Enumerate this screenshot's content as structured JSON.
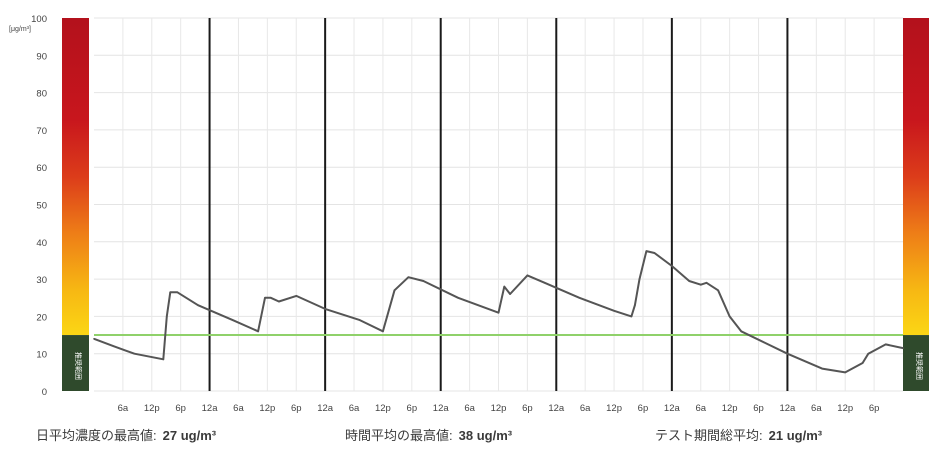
{
  "chart_data": {
    "type": "line",
    "ylabel": "[μg/m³]",
    "ylim": [
      0,
      100
    ],
    "yticks": [
      0,
      10,
      20,
      30,
      40,
      50,
      60,
      70,
      80,
      90,
      100
    ],
    "xlim": [
      0,
      7
    ],
    "x_unit": "days",
    "x_tick_labels": [
      "6a",
      "12p",
      "6p",
      "12a",
      "6a",
      "12p",
      "6p",
      "12a",
      "6a",
      "12p",
      "6p",
      "12a",
      "6a",
      "12p",
      "6p",
      "12a",
      "6a",
      "12p",
      "6p",
      "12a",
      "6a",
      "12p",
      "6p",
      "12a",
      "6a",
      "12p",
      "6p"
    ],
    "day_boundaries": [
      1,
      2,
      3,
      4,
      5,
      6
    ],
    "grid": true,
    "reference_line": {
      "value": 15,
      "color": "#8fd16a"
    },
    "color_scale_labels": {
      "left": "推奨範囲",
      "right": "推奨範囲"
    },
    "series": [
      {
        "color": "#555555",
        "points": [
          [
            0.0,
            14.0
          ],
          [
            0.17,
            12.0
          ],
          [
            0.35,
            10.0
          ],
          [
            0.6,
            8.5
          ],
          [
            0.63,
            20.0
          ],
          [
            0.66,
            26.5
          ],
          [
            0.72,
            26.5
          ],
          [
            0.9,
            23.0
          ],
          [
            1.2,
            19.0
          ],
          [
            1.42,
            16.0
          ],
          [
            1.48,
            25.0
          ],
          [
            1.53,
            25.0
          ],
          [
            1.6,
            24.0
          ],
          [
            1.75,
            25.5
          ],
          [
            2.0,
            22.0
          ],
          [
            2.3,
            19.0
          ],
          [
            2.5,
            16.0
          ],
          [
            2.6,
            27.0
          ],
          [
            2.72,
            30.5
          ],
          [
            2.85,
            29.5
          ],
          [
            3.15,
            25.0
          ],
          [
            3.5,
            21.0
          ],
          [
            3.55,
            28.0
          ],
          [
            3.6,
            26.0
          ],
          [
            3.75,
            31.0
          ],
          [
            3.9,
            29.0
          ],
          [
            4.2,
            25.0
          ],
          [
            4.5,
            21.5
          ],
          [
            4.65,
            20.0
          ],
          [
            4.68,
            23.0
          ],
          [
            4.72,
            30.0
          ],
          [
            4.78,
            37.5
          ],
          [
            4.85,
            37.0
          ],
          [
            5.0,
            33.5
          ],
          [
            5.15,
            29.5
          ],
          [
            5.25,
            28.5
          ],
          [
            5.3,
            29.0
          ],
          [
            5.4,
            27.0
          ],
          [
            5.5,
            20.0
          ],
          [
            5.6,
            16.0
          ],
          [
            5.8,
            13.0
          ],
          [
            6.0,
            10.0
          ],
          [
            6.3,
            6.0
          ],
          [
            6.5,
            5.0
          ],
          [
            6.65,
            7.5
          ],
          [
            6.7,
            10.0
          ],
          [
            6.85,
            12.5
          ],
          [
            7.0,
            11.5
          ]
        ]
      }
    ]
  },
  "summary": {
    "daily_max_label": "日平均濃度の最高値:",
    "daily_max_value": "27 ug/m³",
    "hourly_max_label": "時間平均の最高値:",
    "hourly_max_value": "38 ug/m³",
    "period_avg_label": "テスト期間総平均:",
    "period_avg_value": "21 ug/m³"
  }
}
